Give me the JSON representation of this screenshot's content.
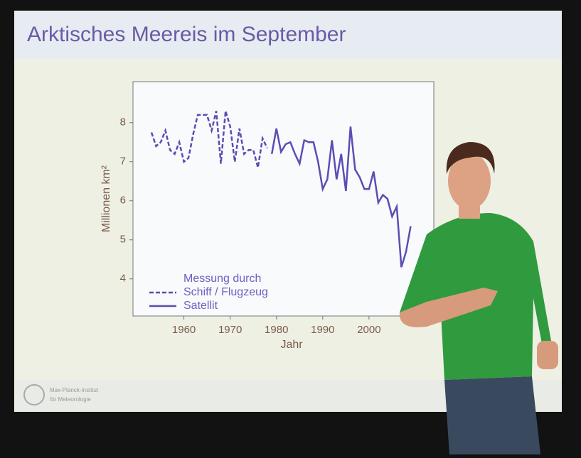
{
  "chart_data": {
    "type": "line",
    "title": "Arktisches Meereis im September",
    "x_label": "Jahr",
    "y_label": "Millionen km²",
    "legend_title": "Messung durch",
    "legend": "lower left",
    "x": [
      1953,
      1954,
      1955,
      1956,
      1957,
      1958,
      1959,
      1960,
      1961,
      1962,
      1963,
      1964,
      1965,
      1966,
      1967,
      1968,
      1969,
      1970,
      1971,
      1972,
      1973,
      1974,
      1975,
      1976,
      1977,
      1978,
      1979,
      1980,
      1981,
      1982,
      1983,
      1984,
      1985,
      1986,
      1987,
      1988,
      1989,
      1990,
      1991,
      1992,
      1993,
      1994,
      1995,
      1996,
      1997,
      1998,
      1999,
      2000,
      2001,
      2002,
      2003,
      2004,
      2005,
      2006,
      2007,
      2008,
      2009
    ],
    "series": [
      {
        "name": "Schiff / Flugzeug",
        "color": "#5a4db3",
        "dashed": true,
        "values": [
          7.75,
          7.4,
          7.5,
          7.8,
          7.3,
          7.2,
          7.5,
          7.0,
          7.1,
          7.7,
          8.2,
          8.2,
          8.2,
          7.8,
          8.3,
          6.95,
          8.3,
          7.9,
          7.0,
          7.85,
          7.2,
          7.3,
          7.3,
          6.85,
          7.6,
          7.35,
          null,
          null,
          null,
          null,
          null,
          null,
          null,
          null,
          null,
          null,
          null,
          null,
          null,
          null,
          null,
          null,
          null,
          null,
          null,
          null,
          null,
          null,
          null,
          null,
          null,
          null,
          null,
          null,
          null,
          null,
          null
        ]
      },
      {
        "name": "Satellit",
        "color": "#5a4db3",
        "dashed": false,
        "values": [
          null,
          null,
          null,
          null,
          null,
          null,
          null,
          null,
          null,
          null,
          null,
          null,
          null,
          null,
          null,
          null,
          null,
          null,
          null,
          null,
          null,
          null,
          null,
          null,
          null,
          null,
          7.2,
          7.85,
          7.25,
          7.45,
          7.5,
          7.2,
          6.95,
          7.55,
          7.5,
          7.5,
          7.0,
          6.3,
          6.55,
          7.55,
          6.55,
          7.2,
          6.25,
          7.9,
          6.8,
          6.6,
          6.3,
          6.3,
          6.75,
          5.95,
          6.15,
          6.05,
          5.6,
          5.85,
          4.3,
          4.7,
          5.35
        ]
      }
    ],
    "xlim": [
      1949,
      2014
    ],
    "xticks": [
      1960,
      1970,
      1980,
      1990,
      2000
    ],
    "ylim": [
      3.05,
      9.05
    ],
    "yticks": [
      4,
      5,
      6,
      7,
      8
    ],
    "grid": false,
    "footer": [
      "Max-Planck-Institut",
      "für Meteorologie"
    ]
  }
}
